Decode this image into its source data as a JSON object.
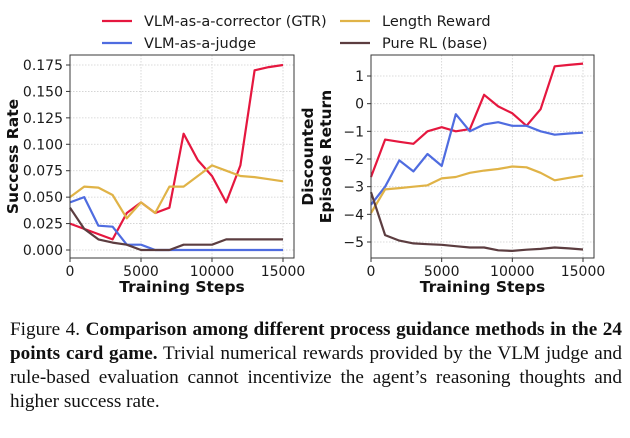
{
  "legend": [
    {
      "label": "VLM-as-a-corrector (GTR)",
      "color": "#e5173f"
    },
    {
      "label": "VLM-as-a-judge",
      "color": "#4f6ce0"
    },
    {
      "label": "Length Reward",
      "color": "#e0b347"
    },
    {
      "label": "Pure RL (base)",
      "color": "#5c3d40"
    }
  ],
  "chart_data": [
    {
      "type": "line",
      "title": "",
      "xlabel": "Training Steps",
      "ylabel": "Success Rate",
      "xlim": [
        0,
        15000
      ],
      "ylim": [
        -0.008,
        0.182
      ],
      "xticks": [
        0,
        5000,
        10000,
        15000
      ],
      "xtick_labels": [
        "0",
        "5000",
        "10000",
        "15000"
      ],
      "yticks": [
        0.0,
        0.025,
        0.05,
        0.075,
        0.1,
        0.125,
        0.15,
        0.175
      ],
      "ytick_labels": [
        "0.000",
        "0.025",
        "0.050",
        "0.075",
        "0.100",
        "0.125",
        "0.150",
        "0.175"
      ],
      "grid": true,
      "x": [
        0,
        1000,
        2000,
        3000,
        4000,
        5000,
        6000,
        7000,
        8000,
        9000,
        10000,
        11000,
        12000,
        13000,
        14000,
        15000
      ],
      "series": [
        {
          "name": "VLM-as-a-corrector (GTR)",
          "color": "#e5173f",
          "values": [
            0.025,
            0.02,
            0.015,
            0.01,
            0.035,
            0.045,
            0.035,
            0.04,
            0.11,
            0.085,
            0.07,
            0.045,
            0.08,
            0.17,
            0.173,
            0.175
          ]
        },
        {
          "name": "VLM-as-a-judge",
          "color": "#4f6ce0",
          "values": [
            0.045,
            0.05,
            0.023,
            0.022,
            0.005,
            0.005,
            0.0,
            0.0,
            0.0,
            0.0,
            0.0,
            0.0,
            0.0,
            0.0,
            0.0,
            0.0
          ]
        },
        {
          "name": "Length Reward",
          "color": "#e0b347",
          "values": [
            0.05,
            0.06,
            0.059,
            0.052,
            0.03,
            0.045,
            0.035,
            0.06,
            0.06,
            0.07,
            0.08,
            0.075,
            0.07,
            0.069,
            0.067,
            0.065
          ]
        },
        {
          "name": "Pure RL (base)",
          "color": "#5c3d40",
          "values": [
            0.04,
            0.02,
            0.01,
            0.007,
            0.005,
            0.0,
            0.0,
            0.0,
            0.005,
            0.005,
            0.005,
            0.01,
            0.01,
            0.01,
            0.01,
            0.01
          ]
        }
      ]
    },
    {
      "type": "line",
      "title": "",
      "xlabel": "Training Steps",
      "ylabel": "Discounted\nEpisode Return",
      "ylabel_lines": [
        "Discounted",
        "Episode Return"
      ],
      "xlim": [
        0,
        15000
      ],
      "ylim": [
        -5.65,
        1.8
      ],
      "xticks": [
        0,
        5000,
        10000,
        15000
      ],
      "xtick_labels": [
        "0",
        "5000",
        "10000",
        "15000"
      ],
      "yticks": [
        -5,
        -4,
        -3,
        -2,
        -1,
        0,
        1
      ],
      "ytick_labels": [
        "−5",
        "−4",
        "−3",
        "−2",
        "−1",
        "0",
        "1"
      ],
      "grid": true,
      "x": [
        0,
        1000,
        2000,
        3000,
        4000,
        5000,
        6000,
        7000,
        8000,
        9000,
        10000,
        11000,
        12000,
        13000,
        14000,
        15000
      ],
      "series": [
        {
          "name": "VLM-as-a-corrector (GTR)",
          "color": "#e5173f",
          "values": [
            -2.65,
            -1.3,
            -1.38,
            -1.45,
            -1.0,
            -0.85,
            -1.0,
            -0.92,
            0.32,
            -0.1,
            -0.35,
            -0.8,
            -0.2,
            1.35,
            1.4,
            1.45
          ]
        },
        {
          "name": "VLM-as-a-judge",
          "color": "#4f6ce0",
          "values": [
            -3.65,
            -3.0,
            -2.05,
            -2.45,
            -1.82,
            -2.25,
            -0.38,
            -1.0,
            -0.75,
            -0.67,
            -0.8,
            -0.8,
            -1.0,
            -1.12,
            -1.08,
            -1.05
          ]
        },
        {
          "name": "Length Reward",
          "color": "#e0b347",
          "values": [
            -3.95,
            -3.1,
            -3.05,
            -3.0,
            -2.95,
            -2.7,
            -2.65,
            -2.5,
            -2.42,
            -2.36,
            -2.27,
            -2.3,
            -2.5,
            -2.77,
            -2.68,
            -2.6
          ]
        },
        {
          "name": "Pure RL (base)",
          "color": "#5c3d40",
          "values": [
            -3.2,
            -4.75,
            -4.95,
            -5.05,
            -5.08,
            -5.1,
            -5.15,
            -5.2,
            -5.2,
            -5.3,
            -5.32,
            -5.28,
            -5.25,
            -5.2,
            -5.23,
            -5.27
          ]
        }
      ]
    }
  ],
  "caption": {
    "label": "Figure 4. ",
    "bold": "Comparison among different process guidance methods in the 24 points card game.",
    "text": " Trivial numerical rewards provided by the VLM judge and rule-based evaluation cannot incentivize the agent’s reasoning thoughts and higher success rate."
  }
}
